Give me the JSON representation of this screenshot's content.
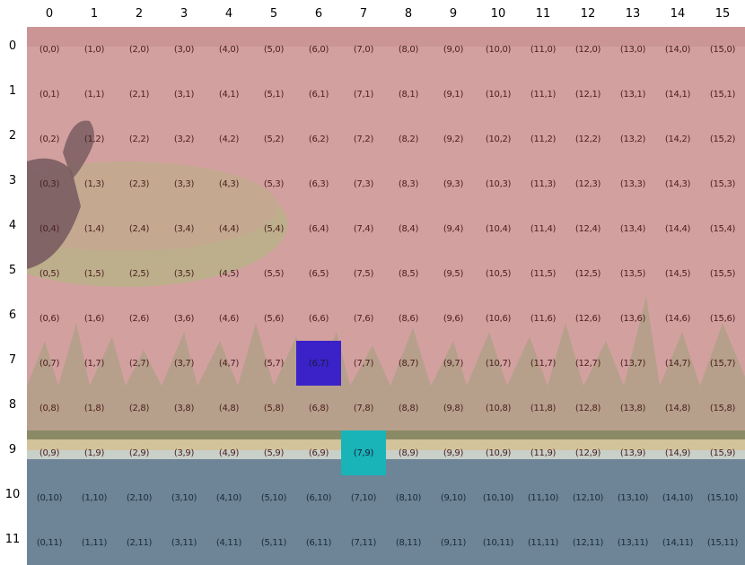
{
  "grid": {
    "cols": 16,
    "rows": 12,
    "col_labels": [
      "0",
      "1",
      "2",
      "3",
      "4",
      "5",
      "6",
      "7",
      "8",
      "9",
      "10",
      "11",
      "12",
      "13",
      "14",
      "15"
    ],
    "row_labels": [
      "0",
      "1",
      "2",
      "3",
      "4",
      "5",
      "6",
      "7",
      "8",
      "9",
      "10",
      "11"
    ]
  },
  "highlights": [
    {
      "col": 6,
      "row": 7,
      "color": "#3a22c8"
    },
    {
      "col": 7,
      "row": 9,
      "color": "#18b4b8"
    }
  ],
  "colors": {
    "sky_overlay": "#d49a9a",
    "forest": "#8c9a6a",
    "ground_stripe": "#c8b890",
    "water": "#6d8596",
    "island": "#a9b07a",
    "rock": "#6a5a5a"
  }
}
